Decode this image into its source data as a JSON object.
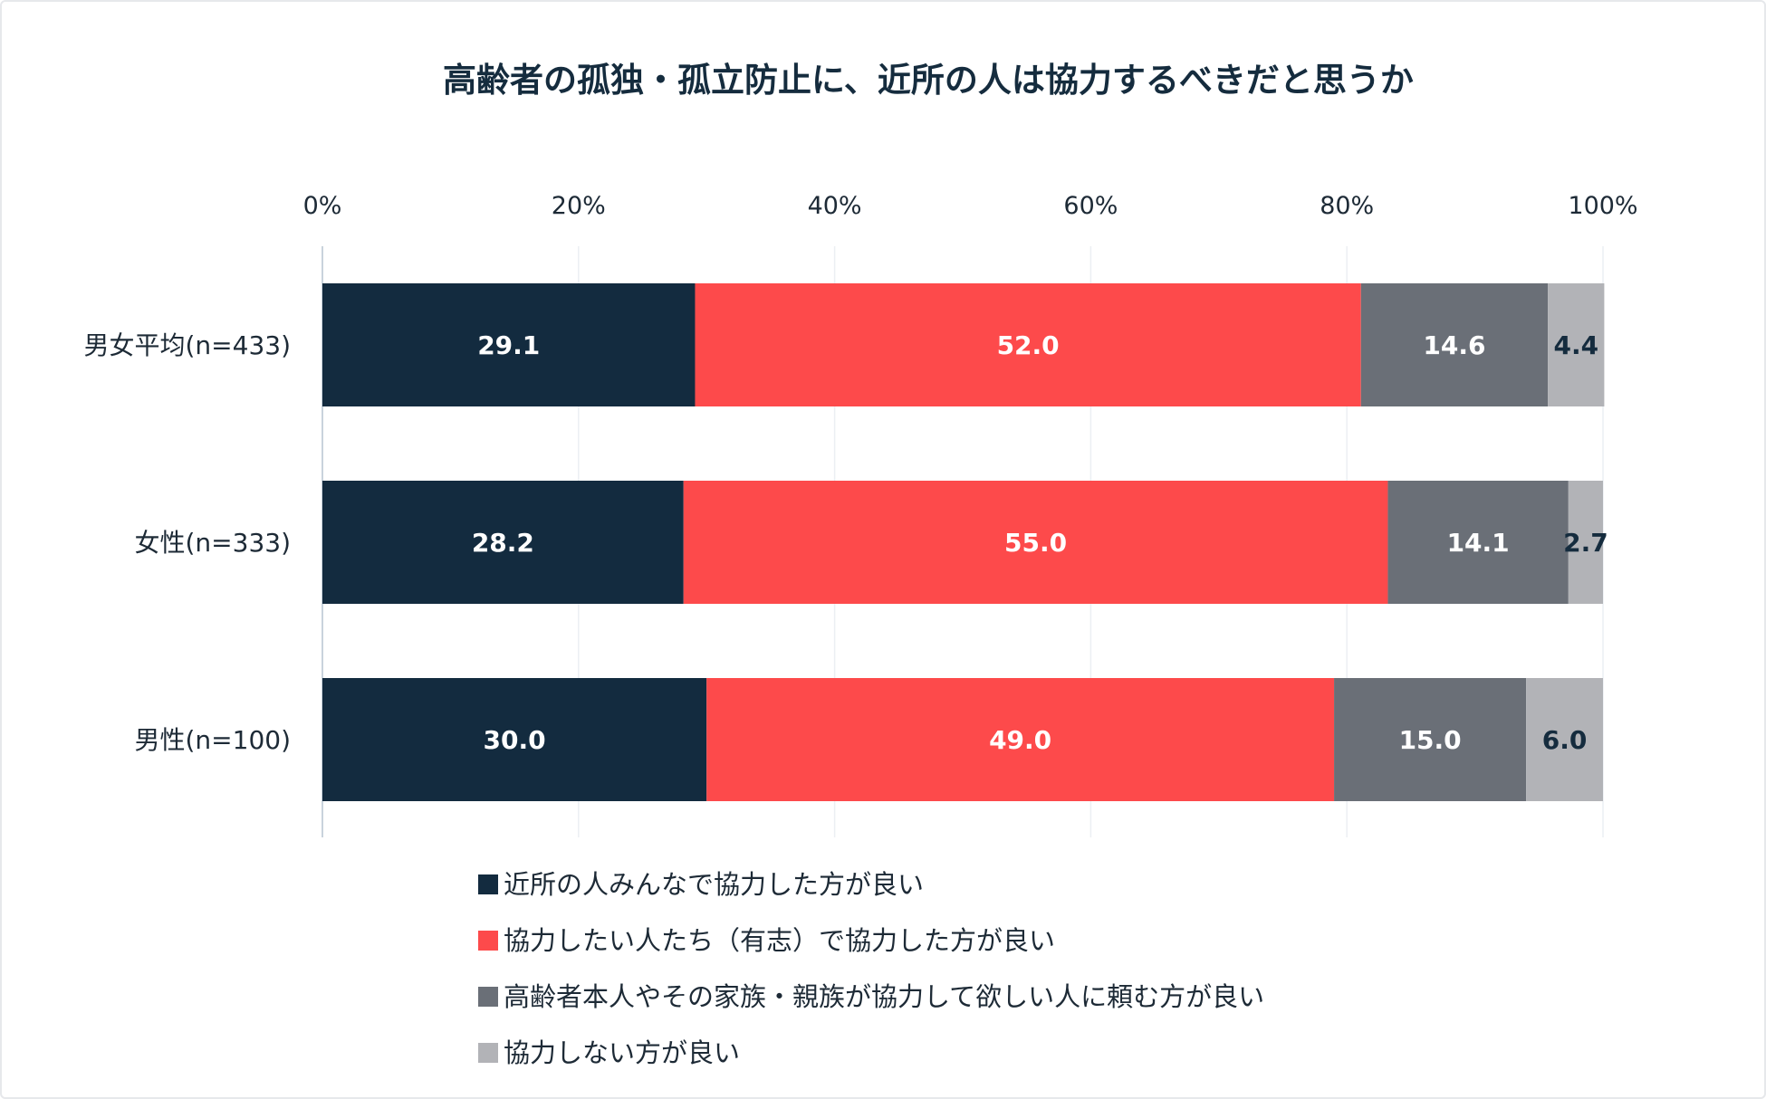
{
  "chart_data": {
    "type": "bar",
    "orientation": "horizontal",
    "stacked": true,
    "title": "高齢者の孤独・孤立防止に、近所の人は協力するべきだと思うか",
    "xlabel": "",
    "ylabel": "",
    "xlim": [
      0,
      100
    ],
    "xticks": [
      "0%",
      "20%",
      "40%",
      "60%",
      "80%",
      "100%"
    ],
    "grid": true,
    "legend_position": "bottom",
    "categories": [
      "男女平均(n=433)",
      "女性(n=333)",
      "男性(n=100)"
    ],
    "series": [
      {
        "name": "近所の人みんなで協力した方が良い",
        "color": "#132b3f",
        "label_color": "#ffffff",
        "values": [
          29.1,
          28.2,
          30.0
        ]
      },
      {
        "name": "協力したい人たち（有志）で協力した方が良い",
        "color": "#fd4a4b",
        "label_color": "#ffffff",
        "values": [
          52.0,
          55.0,
          49.0
        ]
      },
      {
        "name": "高齢者本人やその家族・親族が協力して欲しい人に頼む方が良い",
        "color": "#6a6f77",
        "label_color": "#ffffff",
        "values": [
          14.6,
          14.1,
          15.0
        ]
      },
      {
        "name": "協力しない方が良い",
        "color": "#b2b3b7",
        "label_color": "#152c3e",
        "values": [
          4.4,
          2.7,
          6.0
        ]
      }
    ]
  }
}
